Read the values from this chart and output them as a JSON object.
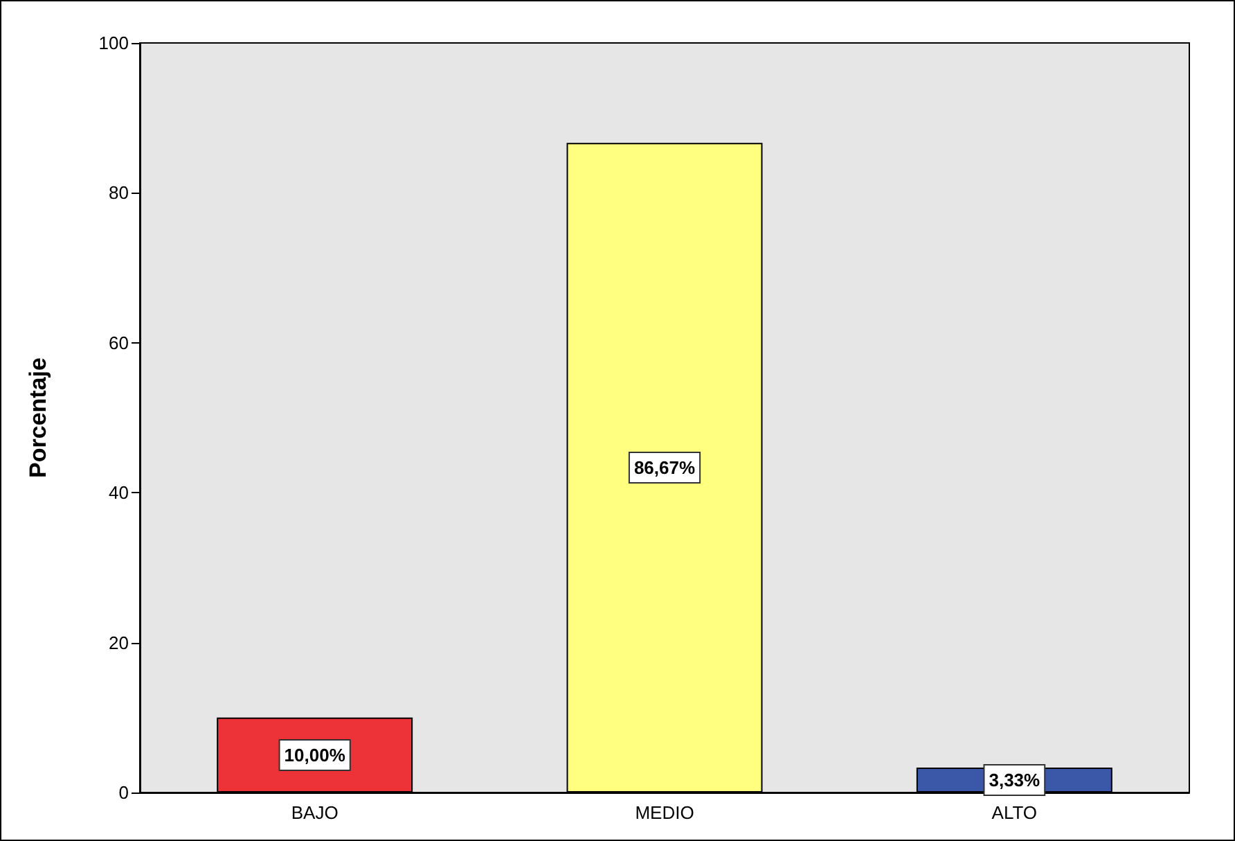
{
  "chart_data": {
    "type": "bar",
    "ylabel": "Porcentaje",
    "categories": [
      "BAJO",
      "MEDIO",
      "ALTO"
    ],
    "values": [
      10,
      86.67,
      3.33
    ],
    "colors": [
      "#ee3338",
      "#ffff80",
      "#3a57a8"
    ],
    "value_labels": [
      "10,00%",
      "86,67%",
      "3,33%"
    ],
    "ylim": [
      0,
      100
    ],
    "yticks": [
      0,
      20,
      40,
      60,
      80,
      100
    ],
    "grid": false
  }
}
